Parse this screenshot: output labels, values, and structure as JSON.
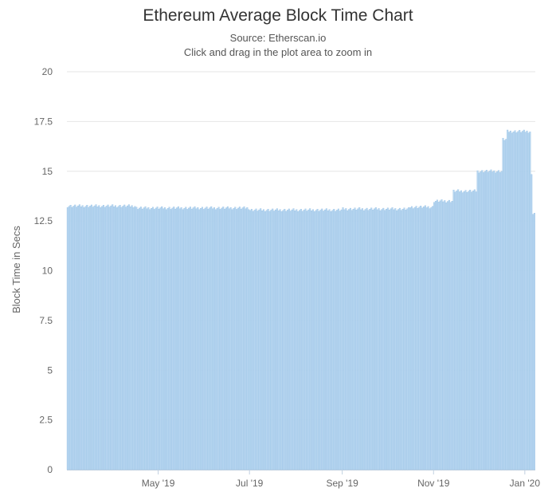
{
  "chart_data": {
    "type": "bar",
    "title": "Ethereum Average Block Time Chart",
    "subtitle_lines": [
      "Source: Etherscan.io",
      "Click and drag in the plot area to zoom in"
    ],
    "ylabel": "Block Time in Secs",
    "xlabel": "",
    "ylim": [
      0,
      20
    ],
    "y_ticks": [
      "0",
      "2.5",
      "5",
      "7.5",
      "10",
      "12.5",
      "15",
      "17.5",
      "20"
    ],
    "x_ticks": [
      {
        "label": "May '19",
        "date": "2019-05-01"
      },
      {
        "label": "Jul '19",
        "date": "2019-07-01"
      },
      {
        "label": "Sep '19",
        "date": "2019-09-01"
      },
      {
        "label": "Nov '19",
        "date": "2019-11-01"
      },
      {
        "label": "Jan '20",
        "date": "2020-01-01"
      }
    ],
    "x_range": [
      "2019-03-01",
      "2020-01-07"
    ],
    "grid": true,
    "bar_color": "#b8d6f0",
    "bar_edge_color": "#8fbde3",
    "series_segments": [
      {
        "from": "2019-03-01",
        "to": "2019-04-15",
        "value": 13.25
      },
      {
        "from": "2019-04-16",
        "to": "2019-06-30",
        "value": 13.15
      },
      {
        "from": "2019-07-01",
        "to": "2019-08-31",
        "value": 13.05
      },
      {
        "from": "2019-09-01",
        "to": "2019-10-15",
        "value": 13.1
      },
      {
        "from": "2019-10-16",
        "to": "2019-10-31",
        "value": 13.2
      },
      {
        "from": "2019-11-01",
        "to": "2019-11-13",
        "value": 13.5
      },
      {
        "from": "2019-11-14",
        "to": "2019-11-29",
        "value": 14.0
      },
      {
        "from": "2019-11-30",
        "to": "2019-12-16",
        "value": 15.0
      },
      {
        "from": "2019-12-17",
        "to": "2019-12-19",
        "value": 16.6
      },
      {
        "from": "2019-12-20",
        "to": "2020-01-04",
        "value": 17.0
      },
      {
        "from": "2020-01-05",
        "to": "2020-01-05",
        "value": 14.8
      },
      {
        "from": "2020-01-06",
        "to": "2020-01-07",
        "value": 12.9
      }
    ]
  }
}
